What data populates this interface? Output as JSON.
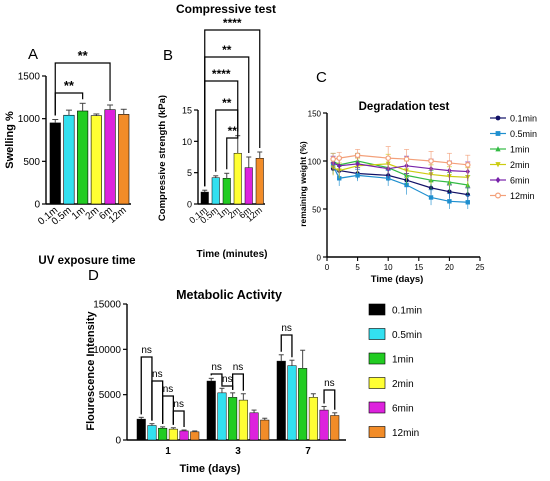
{
  "colors": [
    "#000000",
    "#33e0f0",
    "#22cc22",
    "#ffff33",
    "#dd22dd",
    "#f28c28"
  ],
  "degradation_colors": [
    "#111166",
    "#1f8fcf",
    "#33bb44",
    "#cccc11",
    "#7722aa",
    "#f3a07a"
  ],
  "chart_data": [
    {
      "type": "bar",
      "panel": "A",
      "title": "",
      "xlabel": "UV exposure time",
      "ylabel": "Swelling %",
      "categories": [
        "0.1m",
        "0.5m",
        "1m",
        "2m",
        "6m",
        "12m"
      ],
      "values": [
        950,
        1040,
        1090,
        1035,
        1105,
        1050
      ],
      "errors": [
        40,
        60,
        90,
        20,
        55,
        60
      ],
      "ylim": [
        0,
        1500
      ],
      "yticks": [
        0,
        500,
        1000,
        1500
      ],
      "significance": [
        {
          "from": 0,
          "to": 2,
          "label": "**"
        },
        {
          "from": 0,
          "to": 4,
          "label": "**"
        }
      ]
    },
    {
      "type": "bar",
      "panel": "B",
      "title": "Compressive test",
      "xlabel": "Time (minutes)",
      "ylabel": "Compressive strength (kPa)",
      "categories": [
        "0.1m",
        "0.5m",
        "1m",
        "2m",
        "6m",
        "12m"
      ],
      "values": [
        1.9,
        4.2,
        4.1,
        8.1,
        5.8,
        7.3
      ],
      "errors": [
        0.3,
        0.3,
        0.8,
        2.8,
        1.7,
        1.0
      ],
      "ylim": [
        0,
        15
      ],
      "yticks": [
        0,
        5,
        10,
        15
      ],
      "significance": [
        {
          "from": 2,
          "to": 3,
          "label": "**"
        },
        {
          "from": 1,
          "to": 3,
          "label": "**"
        },
        {
          "from": 0,
          "to": 3,
          "label": "****"
        },
        {
          "from": 0,
          "to": 4,
          "label": "**"
        },
        {
          "from": 0,
          "to": 5,
          "label": "****"
        }
      ]
    },
    {
      "type": "line",
      "panel": "C",
      "title": "Degradation test",
      "xlabel": "Time (days)",
      "ylabel": "remaining weight (%)",
      "xlim": [
        0,
        25
      ],
      "ylim": [
        0,
        150
      ],
      "xticks": [
        0,
        5,
        10,
        15,
        20,
        25
      ],
      "yticks": [
        0,
        50,
        100,
        150
      ],
      "x": [
        1,
        2,
        5,
        10,
        13,
        17,
        20,
        23
      ],
      "series": [
        {
          "name": "0.1min",
          "values": [
            92,
            90,
            87,
            85,
            80,
            72,
            68,
            65
          ],
          "errors": [
            6,
            6,
            6,
            6,
            7,
            7,
            7,
            7
          ]
        },
        {
          "name": "0.5min",
          "values": [
            95,
            82,
            85,
            82,
            75,
            62,
            58,
            57
          ],
          "errors": [
            7,
            8,
            6,
            8,
            10,
            8,
            8,
            7
          ]
        },
        {
          "name": "1min",
          "values": [
            100,
            96,
            100,
            93,
            85,
            80,
            78,
            75
          ],
          "errors": [
            8,
            8,
            8,
            10,
            10,
            10,
            10,
            10
          ]
        },
        {
          "name": "2min",
          "values": [
            93,
            90,
            95,
            97,
            90,
            86,
            84,
            83
          ],
          "errors": [
            8,
            8,
            8,
            10,
            10,
            10,
            10,
            10
          ]
        },
        {
          "name": "6min",
          "values": [
            98,
            95,
            97,
            92,
            95,
            92,
            90,
            89
          ],
          "errors": [
            7,
            7,
            7,
            10,
            10,
            10,
            10,
            10
          ]
        },
        {
          "name": "12min",
          "values": [
            102,
            103,
            106,
            103,
            102,
            100,
            98,
            96
          ],
          "errors": [
            6,
            6,
            6,
            12,
            10,
            10,
            10,
            10
          ]
        }
      ]
    },
    {
      "type": "bar",
      "panel": "D",
      "title": "Metabolic Activity",
      "xlabel": "Time (days)",
      "ylabel": "Flourescence Intensity",
      "categories": [
        "1",
        "3",
        "7"
      ],
      "ylim": [
        0,
        15000
      ],
      "yticks": [
        0,
        5000,
        10000,
        15000
      ],
      "series": [
        {
          "name": "0.1min",
          "values": [
            2300,
            6500,
            8700
          ],
          "errors": [
            200,
            300,
            700
          ]
        },
        {
          "name": "0.5min",
          "values": [
            1600,
            5200,
            8200
          ],
          "errors": [
            200,
            500,
            600
          ]
        },
        {
          "name": "1min",
          "values": [
            1300,
            4700,
            7900
          ],
          "errors": [
            150,
            500,
            2000
          ]
        },
        {
          "name": "2min",
          "values": [
            1200,
            4400,
            4700
          ],
          "errors": [
            150,
            700,
            400
          ]
        },
        {
          "name": "6min",
          "values": [
            1000,
            3000,
            3300
          ],
          "errors": [
            100,
            300,
            400
          ]
        },
        {
          "name": "12min",
          "values": [
            900,
            2200,
            2700
          ],
          "errors": [
            100,
            200,
            300
          ]
        }
      ],
      "significance": [
        {
          "group": 0,
          "from": 0,
          "to": 1,
          "label": "ns"
        },
        {
          "group": 0,
          "from": 1,
          "to": 2,
          "label": "ns"
        },
        {
          "group": 0,
          "from": 2,
          "to": 3,
          "label": "ns"
        },
        {
          "group": 0,
          "from": 3,
          "to": 4,
          "label": "ns"
        },
        {
          "group": 1,
          "from": 0,
          "to": 1,
          "label": "ns"
        },
        {
          "group": 1,
          "from": 1,
          "to": 2,
          "label": "ns"
        },
        {
          "group": 1,
          "from": 2,
          "to": 3,
          "label": "ns"
        },
        {
          "group": 2,
          "from": 0,
          "to": 1,
          "label": "ns"
        },
        {
          "group": 2,
          "from": 4,
          "to": 5,
          "label": "ns"
        }
      ]
    }
  ]
}
